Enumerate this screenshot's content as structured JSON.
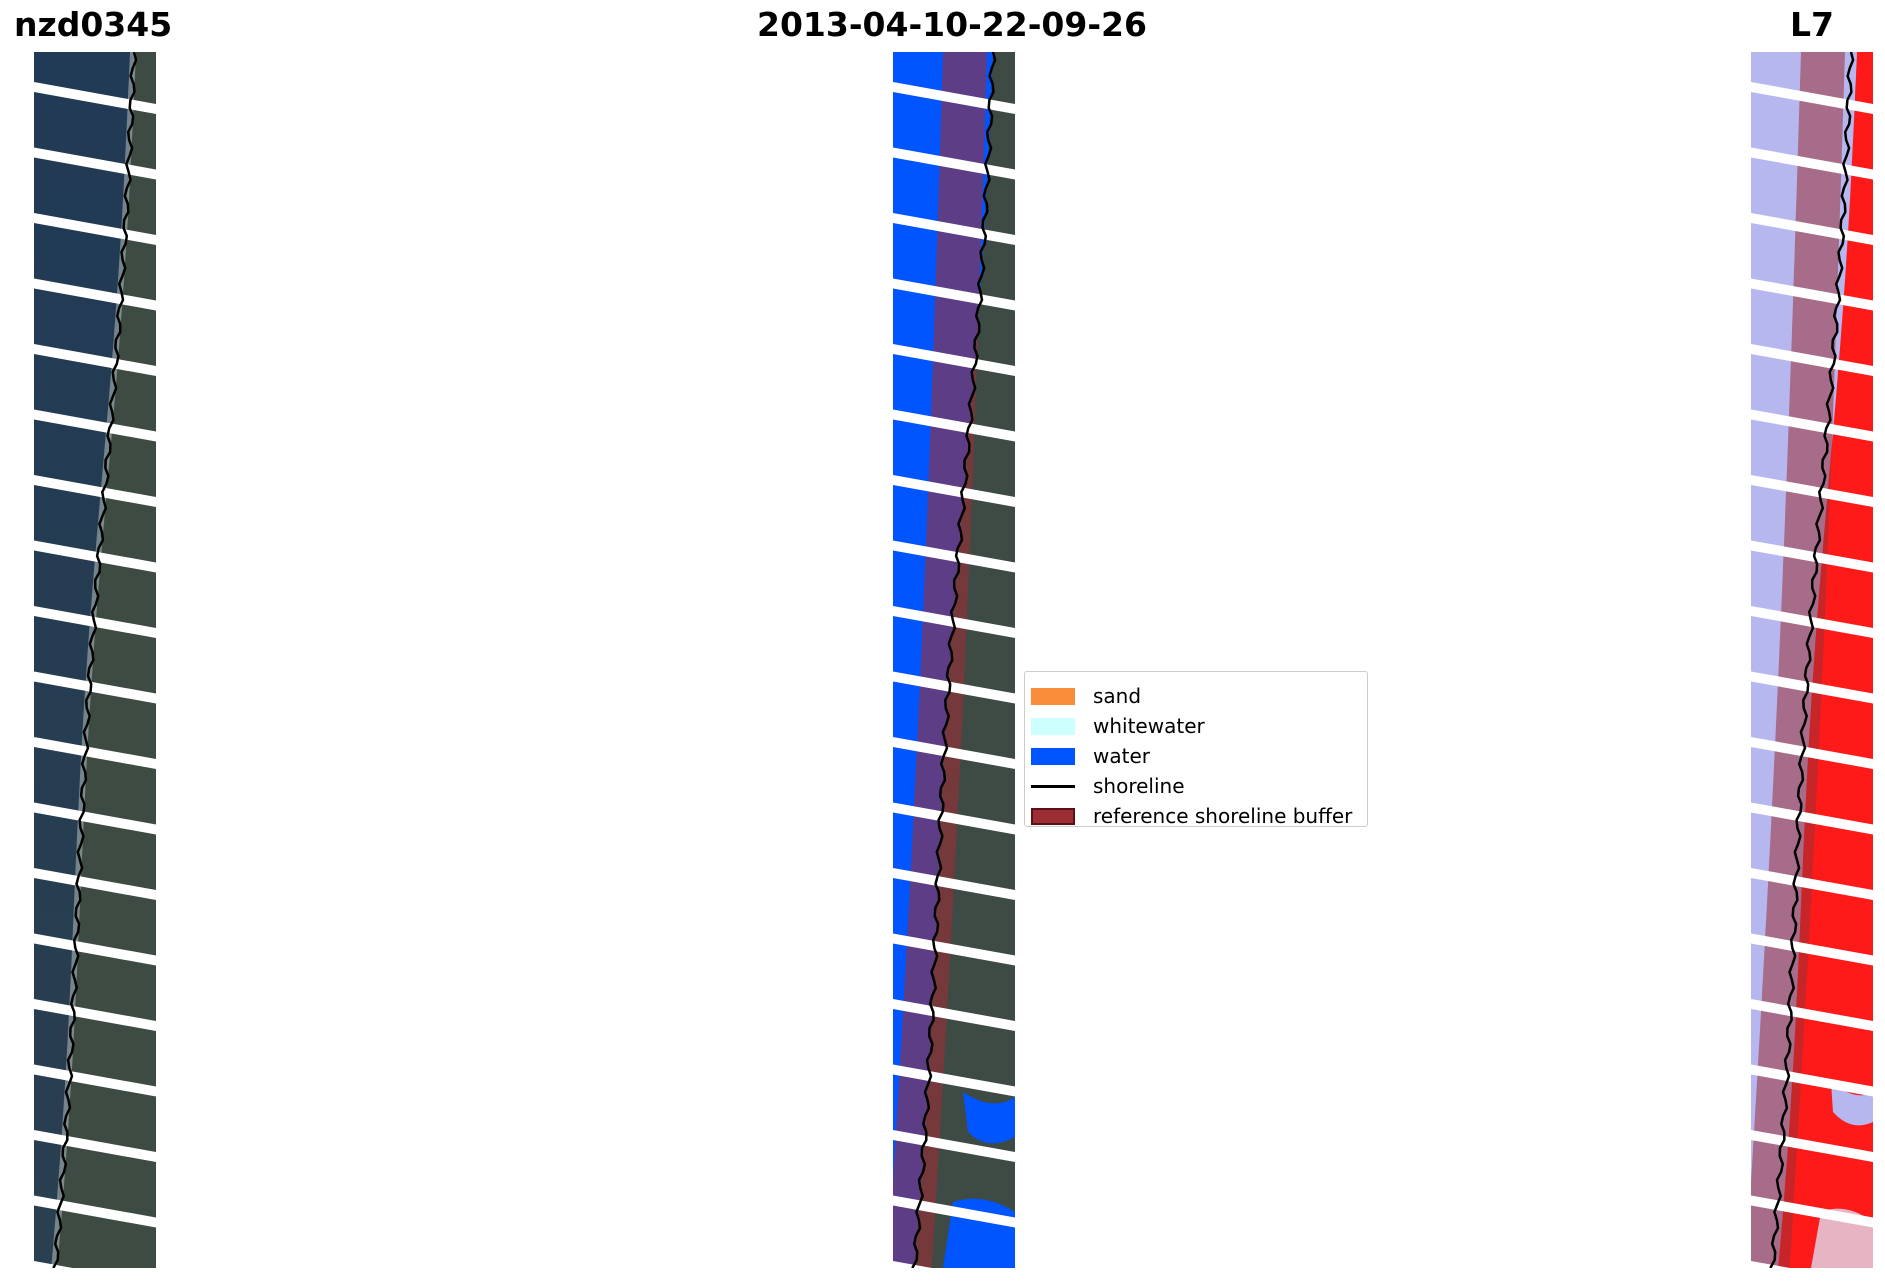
{
  "titles": {
    "site": "nzd0345",
    "date": "2013-04-10-22-09-26",
    "satellite": "L7"
  },
  "panels": [
    {
      "name": "rgb-image-panel",
      "content": "satellite-true-color-image"
    },
    {
      "name": "classified-image-panel",
      "content": "classified-image"
    },
    {
      "name": "mndwi-image-panel",
      "content": "water-index-image"
    }
  ],
  "legend": {
    "items": [
      {
        "label": "sand",
        "color": "#f98d3a",
        "kind": "patch"
      },
      {
        "label": "whitewater",
        "color": "#ccffff",
        "kind": "patch"
      },
      {
        "label": "water",
        "color": "#0055ff",
        "kind": "patch"
      },
      {
        "label": "shoreline",
        "color": "#000000",
        "kind": "line"
      },
      {
        "label": "reference shoreline buffer",
        "color": "#9b2f35",
        "kind": "patch"
      }
    ]
  },
  "colors": {
    "background": "#ffffff",
    "ocean": "#1f3346",
    "land": "#3d4b42",
    "water_class": "#0055ff",
    "buffer": "#9b2f35",
    "index_low": "#b7b7f0",
    "index_high": "#ff1a1a",
    "shoreline": "#000000"
  }
}
